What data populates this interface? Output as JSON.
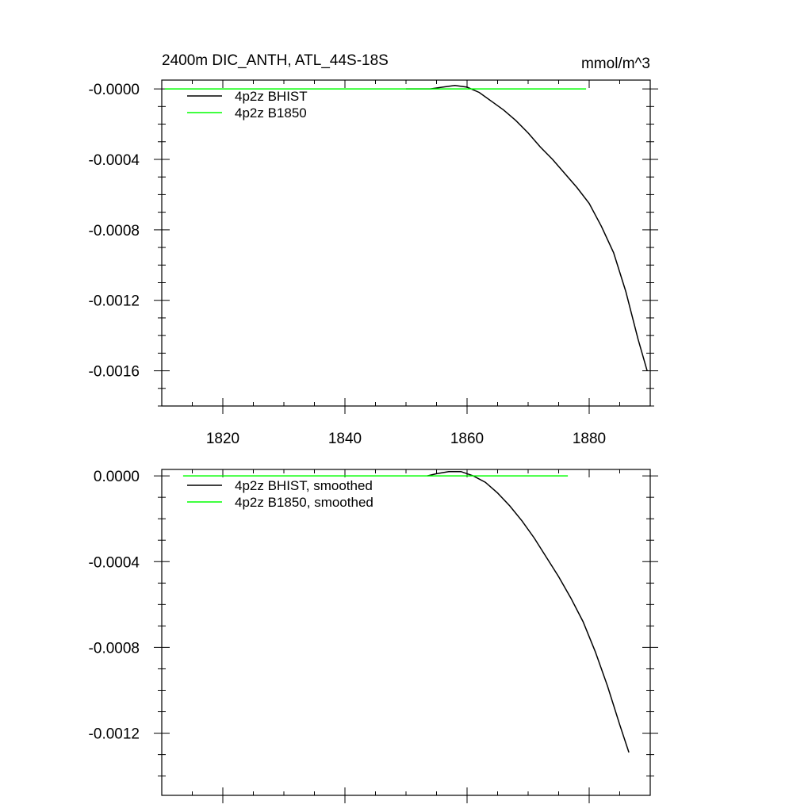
{
  "figure": {
    "title_left": "2400m DIC_ANTH, ATL_44S-18S",
    "title_right": "mmol/m^3"
  },
  "chart_data": [
    {
      "type": "line",
      "title": "2400m DIC_ANTH, ATL_44S-18S",
      "units": "mmol/m^3",
      "xlim": [
        1810,
        1890
      ],
      "ylim": [
        -0.0018,
        5e-05
      ],
      "x_ticks": [
        1820,
        1840,
        1860,
        1880
      ],
      "x_tick_labels": [
        "1820",
        "1840",
        "1860",
        "1880"
      ],
      "y_ticks": [
        0,
        -0.0004,
        -0.0008,
        -0.0012,
        -0.0016
      ],
      "y_tick_labels": [
        "-0.0000",
        "-0.0004",
        "-0.0008",
        "-0.0012",
        "-0.0016"
      ],
      "grid": false,
      "legend_position": "top-left",
      "series": [
        {
          "name": "4p2z BHIST",
          "color": "#000000",
          "x": [
            1850,
            1852,
            1854,
            1856,
            1858,
            1860,
            1862,
            1864,
            1866,
            1868,
            1870,
            1872,
            1874,
            1876,
            1878,
            1880,
            1882,
            1884,
            1886,
            1888,
            1889.5
          ],
          "y": [
            0.0,
            0.0,
            0.0,
            1e-05,
            2e-05,
            1e-05,
            -2e-05,
            -7e-05,
            -0.00012,
            -0.00018,
            -0.00025,
            -0.00033,
            -0.0004,
            -0.00048,
            -0.00056,
            -0.00065,
            -0.00078,
            -0.00093,
            -0.00115,
            -0.00142,
            -0.0016
          ]
        },
        {
          "name": "4p2z B1850",
          "color": "#00ff00",
          "x": [
            1810.5,
            1879.5
          ],
          "y": [
            0.0,
            0.0
          ]
        }
      ]
    },
    {
      "type": "line",
      "title": "",
      "xlim": [
        1810,
        1890
      ],
      "ylim": [
        -0.00149,
        3e-05
      ],
      "x_ticks": [
        1820,
        1840,
        1860,
        1880
      ],
      "y_ticks": [
        0,
        -0.0004,
        -0.0008,
        -0.0012
      ],
      "y_tick_labels": [
        "0.0000",
        "-0.0004",
        "-0.0008",
        "-0.0012"
      ],
      "grid": false,
      "legend_position": "top-left",
      "series": [
        {
          "name": "4p2z BHIST, smoothed",
          "color": "#000000",
          "x": [
            1853.5,
            1855,
            1857,
            1859,
            1861,
            1863,
            1865,
            1867,
            1869,
            1871,
            1873,
            1875,
            1877,
            1879,
            1881,
            1883,
            1885,
            1886.5
          ],
          "y": [
            0.0,
            1e-05,
            2e-05,
            2e-05,
            0.0,
            -3e-05,
            -8e-05,
            -0.00014,
            -0.00021,
            -0.00029,
            -0.00038,
            -0.00047,
            -0.00057,
            -0.00068,
            -0.00082,
            -0.00098,
            -0.00116,
            -0.00129
          ]
        },
        {
          "name": "4p2z B1850, smoothed",
          "color": "#00ff00",
          "x": [
            1813.5,
            1876.5
          ],
          "y": [
            0.0,
            0.0
          ]
        }
      ]
    }
  ]
}
